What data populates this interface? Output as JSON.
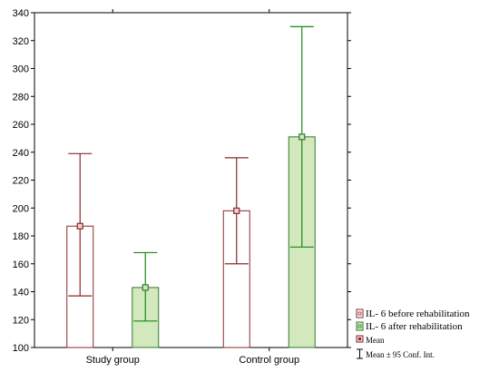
{
  "chart_data": {
    "type": "bar",
    "categories": [
      "Study group",
      "Control group"
    ],
    "ylim": [
      100,
      340
    ],
    "yticks": [
      100,
      120,
      140,
      160,
      180,
      200,
      220,
      240,
      260,
      280,
      300,
      320,
      340
    ],
    "series": [
      {
        "name": "IL- 6 before rehabilitation",
        "values": [
          187,
          198
        ],
        "ci_low": [
          137,
          160
        ],
        "ci_high": [
          239,
          236
        ],
        "fill": "#ffffff",
        "stroke": "#8b2a2a"
      },
      {
        "name": "IL- 6 after rehabilitation",
        "values": [
          143,
          251
        ],
        "ci_low": [
          119,
          172
        ],
        "ci_high": [
          168,
          330
        ],
        "fill": "#d3e8bd",
        "stroke": "#2f7a2f",
        "error_color": "#1a8a1a"
      }
    ],
    "legend": {
      "position": "bottom-right",
      "mean_label": "Mean",
      "ci_label": "Mean ± 95 Conf. Int."
    },
    "grid": false,
    "title": "",
    "xlabel": "",
    "ylabel": ""
  }
}
